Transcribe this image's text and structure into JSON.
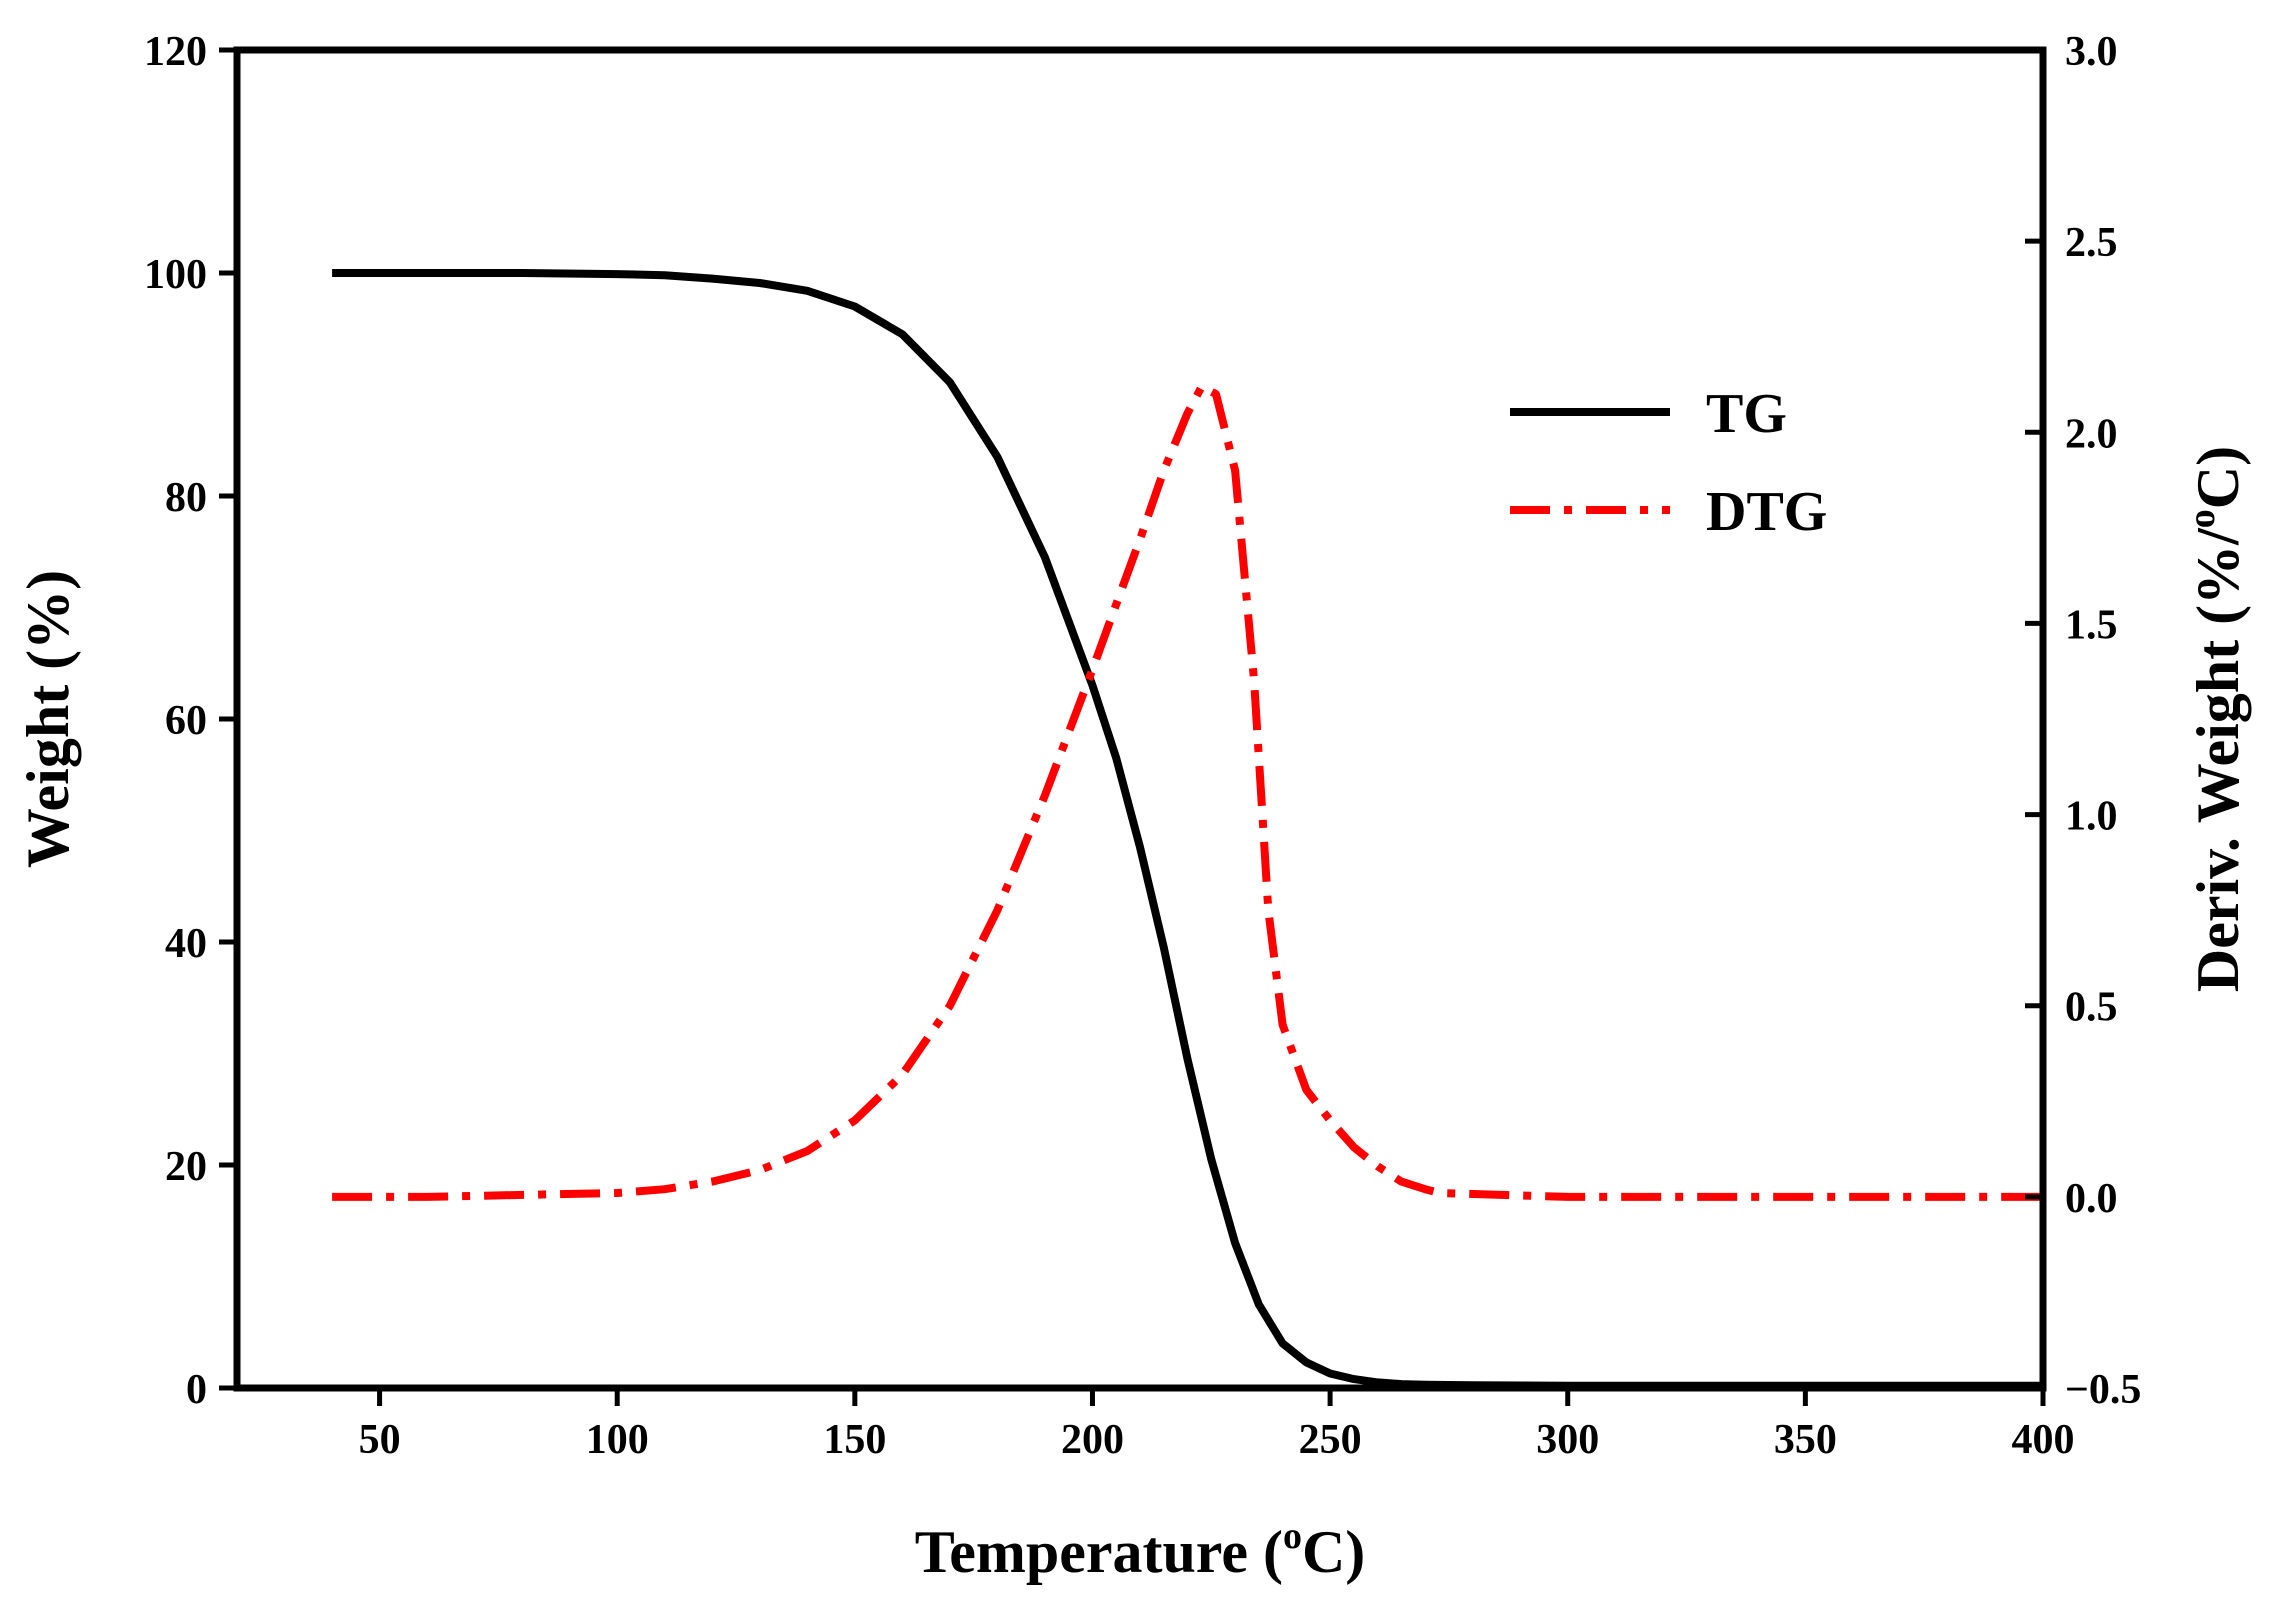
{
  "chart_data": {
    "type": "line",
    "title": "",
    "xlabel": {
      "main": "Temperature (",
      "sup": "o",
      "unit": "C)"
    },
    "ylabel_left": "Weight (%)",
    "ylabel_right": {
      "main": "Deriv. Weight (%/",
      "sup": "o",
      "unit": "C)"
    },
    "xlim": [
      20,
      400
    ],
    "ylim_left": [
      0,
      120
    ],
    "ylim_right": [
      -0.5,
      3.0
    ],
    "x_ticks": [
      50,
      100,
      150,
      200,
      250,
      300,
      350,
      400
    ],
    "x_tick_labels": [
      "50",
      "100",
      "150",
      "200",
      "250",
      "300",
      "350",
      "400"
    ],
    "y_left_ticks": [
      0,
      20,
      40,
      60,
      80,
      100,
      120
    ],
    "y_left_tick_labels": [
      "0",
      "20",
      "40",
      "60",
      "80",
      "100",
      "120"
    ],
    "y_right_ticks": [
      -0.5,
      0.0,
      0.5,
      1.0,
      1.5,
      2.0,
      2.5,
      3.0
    ],
    "y_right_tick_labels": [
      "−0.5",
      "0.0",
      "0.5",
      "1.0",
      "1.5",
      "2.0",
      "2.5",
      "3.0"
    ],
    "grid": false,
    "legend_position": "top-right",
    "series": [
      {
        "name": "TG",
        "axis": "left",
        "color": "#000000",
        "style": "solid",
        "x": [
          40,
          60,
          80,
          100,
          110,
          120,
          130,
          140,
          150,
          160,
          170,
          180,
          190,
          200,
          205,
          210,
          215,
          220,
          225,
          230,
          235,
          240,
          245,
          250,
          255,
          260,
          265,
          270,
          280,
          300,
          340,
          400
        ],
        "y": [
          100,
          100,
          100,
          99.9,
          99.8,
          99.5,
          99.1,
          98.4,
          97.0,
          94.5,
          90.2,
          83.5,
          74.5,
          63.0,
          56.5,
          48.5,
          39.5,
          29.5,
          20.5,
          13.0,
          7.5,
          4.0,
          2.3,
          1.3,
          0.8,
          0.5,
          0.35,
          0.3,
          0.25,
          0.2,
          0.2,
          0.2
        ]
      },
      {
        "name": "DTG",
        "axis": "right",
        "color": "#ff0000",
        "style": "dash-dot",
        "x": [
          40,
          60,
          80,
          100,
          110,
          120,
          130,
          140,
          150,
          160,
          170,
          180,
          190,
          200,
          205,
          210,
          215,
          220,
          223,
          226,
          230,
          234,
          237,
          240,
          245,
          250,
          255,
          260,
          265,
          270,
          273,
          300,
          350,
          400
        ],
        "y": [
          0.0,
          0.0,
          0.005,
          0.01,
          0.02,
          0.04,
          0.07,
          0.12,
          0.2,
          0.32,
          0.5,
          0.75,
          1.05,
          1.38,
          1.55,
          1.72,
          1.9,
          2.05,
          2.12,
          2.1,
          1.9,
          1.35,
          0.75,
          0.45,
          0.28,
          0.2,
          0.13,
          0.08,
          0.04,
          0.02,
          0.01,
          0.0,
          0.0,
          0.0
        ]
      }
    ]
  }
}
